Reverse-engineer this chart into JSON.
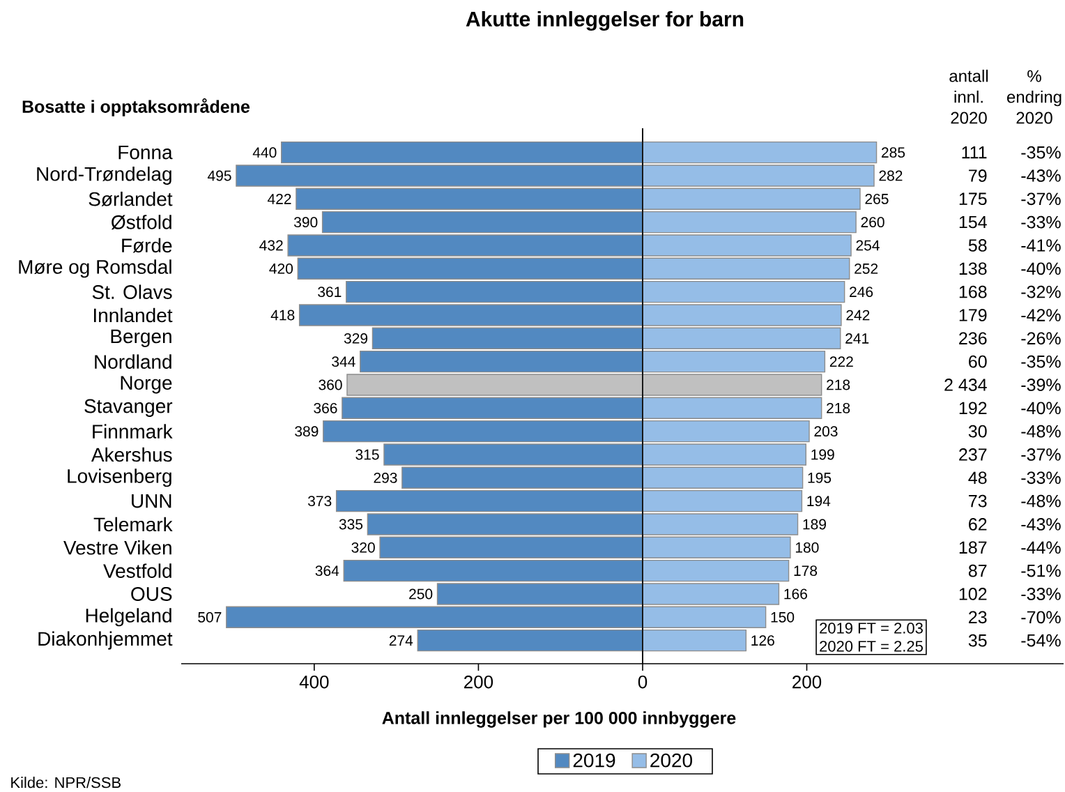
{
  "chart_data": [
    {
      "type": "bar",
      "orientation": "horizontal",
      "title": "Akutte innleggelser for barn",
      "ylabel": "Bosatte i opptaksområdene",
      "xlabel": "Antall innleggelser per 100 000 innbyggere",
      "categories": [
        "Fonna",
        "Nord-Trøndelag",
        "Sørlandet",
        "Østfold",
        "Førde",
        "Møre og Romsdal",
        "St. Olavs",
        "Innlandet",
        "Bergen",
        "Nordland",
        "Norge",
        "Stavanger",
        "Finnmark",
        "Akershus",
        "Lovisenberg",
        "UNN",
        "Telemark",
        "Vestre Viken",
        "Vestfold",
        "OUS",
        "Helgeland",
        "Diakonhjemmet"
      ],
      "series": [
        {
          "name": "2019",
          "color": "#5289c1",
          "colors": [
            "#5289c1",
            "#5289c1",
            "#5289c1",
            "#5289c1",
            "#5289c1",
            "#5289c1",
            "#5289c1",
            "#5289c1",
            "#5289c1",
            "#5289c1",
            "#c0c0c0",
            "#5289c1",
            "#5289c1",
            "#5289c1",
            "#5289c1",
            "#5289c1",
            "#5289c1",
            "#5289c1",
            "#5289c1",
            "#5289c1",
            "#5289c1",
            "#5289c1"
          ],
          "values": [
            440,
            495,
            422,
            390,
            432,
            420,
            361,
            418,
            329,
            344,
            360,
            366,
            389,
            315,
            293,
            373,
            335,
            320,
            364,
            250,
            507,
            274
          ]
        }
      ],
      "data_labels": true,
      "xlim": [
        562,
        0
      ],
      "xticks": [
        400,
        200
      ],
      "legend": "bottom",
      "annotations": [
        "Kilde: NPR/SSB"
      ]
    },
    {
      "type": "bar",
      "orientation": "horizontal",
      "categories": [
        null,
        null,
        null,
        null,
        null,
        null,
        null,
        null,
        null,
        null,
        null,
        null,
        null,
        null,
        null,
        null,
        null,
        null,
        null,
        null,
        null,
        null
      ],
      "series": [
        {
          "name": "2020",
          "color": "#95bde7",
          "colors": [
            "#95bde7",
            "#95bde7",
            "#95bde7",
            "#95bde7",
            "#95bde7",
            "#95bde7",
            "#95bde7",
            "#95bde7",
            "#95bde7",
            "#95bde7",
            "#c0c0c0",
            "#95bde7",
            "#95bde7",
            "#95bde7",
            "#95bde7",
            "#95bde7",
            "#95bde7",
            "#95bde7",
            "#95bde7",
            "#95bde7",
            "#95bde7",
            "#95bde7"
          ],
          "values": [
            285,
            282,
            265,
            260,
            254,
            252,
            246,
            242,
            241,
            222,
            218,
            218,
            203,
            199,
            195,
            194,
            189,
            180,
            178,
            166,
            150,
            126
          ]
        }
      ],
      "data_labels": true,
      "xlim": [
        0,
        513
      ],
      "xticks": [
        0,
        200
      ],
      "legend": "bottom",
      "annotations": [
        "2019 FT = 2.03",
        "2020 FT = 2.25"
      ]
    },
    {
      "type": "other",
      "title": "antall innl. 2020",
      "annotations": [
        "111",
        "79",
        "175",
        "154",
        "58",
        "138",
        "168",
        "179",
        "236",
        "60",
        "2 434",
        "192",
        "30",
        "237",
        "48",
        "73",
        "62",
        "187",
        "87",
        "102",
        "23",
        "35"
      ]
    },
    {
      "type": "other",
      "title": "% endring 2020",
      "annotations": [
        "-35%",
        "-43%",
        "-37%",
        "-33%",
        "-41%",
        "-40%",
        "-32%",
        "-42%",
        "-26%",
        "-35%",
        "-39%",
        "-40%",
        "-48%",
        "-37%",
        "-33%",
        "-48%",
        "-43%",
        "-44%",
        "-51%",
        "-33%",
        "-70%",
        "-54%"
      ]
    }
  ]
}
